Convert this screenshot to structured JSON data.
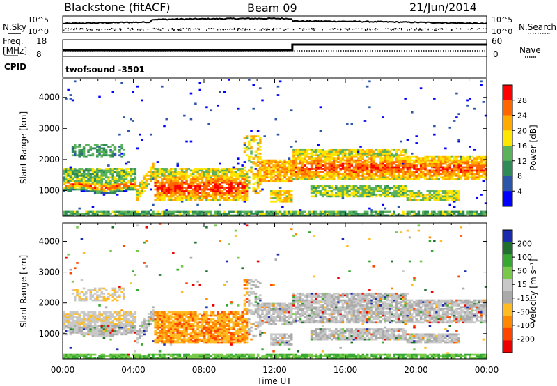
{
  "header": {
    "station": "Blackstone (fitACF)",
    "beam": "Beam 09",
    "date": "21/Jun/2014"
  },
  "top_panels": {
    "nsky_label": "N.Sky",
    "nsearch_label": "N.Search",
    "noise_ticks": [
      "10^5",
      "10^0"
    ],
    "freq_label_1": "Freq.",
    "freq_label_2": "[MHz]",
    "freq_ticks": [
      "18",
      "8"
    ],
    "nave_label": "Nave",
    "nave_ticks": [
      "60",
      "0"
    ],
    "cpid_label": "CPID",
    "cpid_value": "twofsound  -3501",
    "freq_step_hour": 13
  },
  "colors": {
    "power": [
      "#0000ff",
      "#2a55a8",
      "#2e8a57",
      "#5ab35a",
      "#ffe600",
      "#ffaa00",
      "#ff6600",
      "#ff0000"
    ],
    "velocity": [
      "#1a2bb0",
      "#1f6f2f",
      "#35a832",
      "#78c84a",
      "#c8c8c8",
      "#aaaaaa",
      "#ffbb22",
      "#ff8800",
      "#ff4400",
      "#ee0000"
    ]
  },
  "chart_data": [
    {
      "type": "heatmap",
      "name": "power",
      "ylabel": "Slant Range [km]",
      "ylim": [
        180,
        4600
      ],
      "yticks": [
        "1000",
        "2000",
        "3000",
        "4000"
      ],
      "xlim": [
        0,
        24
      ],
      "colorbar_label": "Power [dB]",
      "colorbar_ticks": [
        "28",
        "24",
        "20",
        "16",
        "12",
        "8",
        "4"
      ],
      "colorbar_range": [
        0,
        32
      ]
    },
    {
      "type": "heatmap",
      "name": "velocity",
      "ylabel": "Slant Range [km]",
      "ylim": [
        180,
        4600
      ],
      "yticks": [
        "1000",
        "2000",
        "3000",
        "4000"
      ],
      "xlim": [
        0,
        24
      ],
      "xlabel": "Time UT",
      "xticks": [
        "00:00",
        "04:00",
        "08:00",
        "12:00",
        "16:00",
        "20:00",
        "00:00"
      ],
      "colorbar_label": "Velocity [m s⁻¹]",
      "colorbar_ticks": [
        "200",
        "100",
        "50",
        "15",
        "-15",
        "-50",
        "-100",
        "-200"
      ]
    }
  ]
}
